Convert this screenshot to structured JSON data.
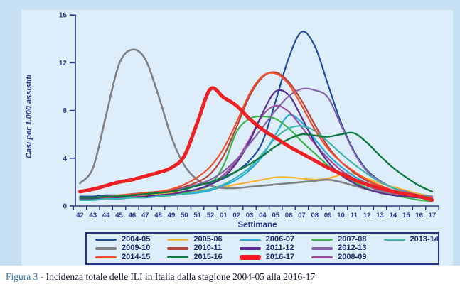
{
  "figure": {
    "caption_label": "Figura 3",
    "caption_text": " - Incidenza totale delle ILI in Italia dalla stagione 2004-05 alla 2016-17"
  },
  "colors": {
    "panel_outer": "#c7e0f3",
    "panel_inner": "#ddeefa",
    "axis": "#2b3990",
    "legend_border": "#2e3192",
    "caption_accent": "#2d74b5"
  },
  "chart_data": {
    "type": "line",
    "x_label": "Settimane",
    "y_label": "Casi per 1.000 assistiti",
    "x": [
      "42",
      "43",
      "44",
      "45",
      "46",
      "47",
      "48",
      "49",
      "50",
      "51",
      "52",
      "01",
      "02",
      "03",
      "04",
      "05",
      "06",
      "07",
      "08",
      "09",
      "10",
      "11",
      "12",
      "13",
      "14",
      "15",
      "16",
      "17"
    ],
    "y_ticks": [
      0,
      4,
      8,
      12,
      16
    ],
    "ylim": [
      0,
      16
    ],
    "grid": false,
    "legend_position": "bottom",
    "series": [
      {
        "name": "2004-05",
        "color": "#1f4e9e",
        "width": 2.2,
        "values": [
          0.8,
          0.8,
          0.9,
          0.9,
          1.0,
          1.1,
          1.2,
          1.3,
          1.5,
          1.7,
          1.9,
          2.3,
          2.9,
          3.8,
          5.4,
          8.8,
          12.4,
          14.6,
          13.4,
          10.2,
          7.0,
          4.6,
          3.0,
          2.1,
          1.5,
          1.2,
          1.0,
          0.8
        ]
      },
      {
        "name": "2009-10",
        "color": "#7f8184",
        "width": 2.6,
        "values": [
          1.9,
          3.2,
          7.6,
          11.9,
          13.1,
          12.3,
          9.3,
          5.8,
          3.4,
          2.2,
          1.7,
          1.5,
          1.5,
          1.6,
          1.7,
          1.8,
          1.9,
          2.0,
          2.1,
          2.2,
          2.0,
          1.7,
          1.4,
          1.2,
          1.0,
          0.8,
          0.7,
          0.6
        ]
      },
      {
        "name": "2014-15",
        "color": "#f04f2a",
        "width": 2.2,
        "values": [
          0.7,
          0.7,
          0.8,
          0.9,
          1.0,
          1.1,
          1.2,
          1.4,
          1.8,
          2.4,
          3.3,
          4.8,
          7.0,
          9.4,
          10.9,
          11.1,
          10.2,
          8.4,
          6.4,
          4.8,
          3.7,
          2.9,
          2.2,
          1.7,
          1.3,
          1.0,
          0.8,
          0.7
        ]
      },
      {
        "name": "2005-06",
        "color": "#f9b233",
        "width": 2.2,
        "values": [
          0.7,
          0.7,
          0.8,
          0.8,
          0.9,
          0.9,
          1.0,
          1.1,
          1.2,
          1.3,
          1.4,
          1.6,
          1.8,
          2.0,
          2.2,
          2.4,
          2.4,
          2.3,
          2.2,
          2.3,
          2.6,
          2.7,
          2.3,
          1.9,
          1.6,
          1.3,
          1.0,
          0.8
        ]
      },
      {
        "name": "2010-11",
        "color": "#b2453e",
        "width": 2.2,
        "values": [
          0.6,
          0.6,
          0.7,
          0.8,
          0.9,
          1.0,
          1.1,
          1.3,
          1.6,
          2.0,
          2.7,
          4.2,
          6.6,
          9.2,
          10.8,
          11.2,
          10.4,
          8.8,
          6.8,
          5.0,
          3.7,
          2.8,
          2.1,
          1.7,
          1.3,
          1.0,
          0.8,
          0.7
        ]
      },
      {
        "name": "2015-16",
        "color": "#0f7a40",
        "width": 2.4,
        "values": [
          0.7,
          0.7,
          0.8,
          0.8,
          0.9,
          1.0,
          1.1,
          1.2,
          1.4,
          1.7,
          2.0,
          2.4,
          2.9,
          3.5,
          4.2,
          5.0,
          5.6,
          6.0,
          5.9,
          5.8,
          6.0,
          6.1,
          5.3,
          4.2,
          3.2,
          2.4,
          1.7,
          1.2
        ]
      },
      {
        "name": "2006-07",
        "color": "#29abe2",
        "width": 2.2,
        "values": [
          0.5,
          0.5,
          0.6,
          0.6,
          0.7,
          0.7,
          0.8,
          0.9,
          1.0,
          1.1,
          1.3,
          1.7,
          2.2,
          3.0,
          4.2,
          6.0,
          7.6,
          7.0,
          5.6,
          4.3,
          3.3,
          2.5,
          1.9,
          1.5,
          1.2,
          0.9,
          0.7,
          0.6
        ]
      },
      {
        "name": "2011-12",
        "color": "#5c2d91",
        "width": 2.2,
        "values": [
          0.6,
          0.6,
          0.6,
          0.7,
          0.7,
          0.8,
          0.9,
          1.0,
          1.2,
          1.4,
          1.8,
          2.4,
          3.6,
          5.4,
          7.8,
          9.6,
          9.3,
          7.4,
          5.3,
          3.7,
          2.6,
          1.9,
          1.4,
          1.1,
          0.9,
          0.8,
          0.7,
          0.6
        ]
      },
      {
        "name": "2016-17",
        "color": "#ed2124",
        "width": 5,
        "values": [
          1.2,
          1.4,
          1.7,
          2.0,
          2.2,
          2.5,
          2.8,
          3.2,
          4.2,
          7.0,
          9.8,
          9.1,
          8.4,
          7.3,
          6.4,
          5.7,
          5.0,
          4.4,
          3.8,
          3.2,
          2.7,
          2.2,
          1.8,
          1.5,
          1.2,
          1.0,
          0.8,
          0.5
        ]
      },
      {
        "name": "2007-08",
        "color": "#3db54a",
        "width": 2.2,
        "values": [
          0.6,
          0.6,
          0.7,
          0.7,
          0.8,
          0.8,
          0.9,
          1.0,
          1.1,
          1.4,
          1.8,
          3.4,
          6.2,
          7.3,
          7.5,
          7.3,
          6.5,
          5.4,
          4.4,
          3.4,
          2.6,
          2.0,
          1.5,
          1.1,
          0.9,
          0.7,
          0.5,
          0.4
        ]
      },
      {
        "name": "2012-13",
        "color": "#8763a9",
        "width": 2.2,
        "values": [
          0.7,
          0.7,
          0.8,
          0.8,
          0.9,
          1.0,
          1.1,
          1.2,
          1.5,
          1.8,
          2.2,
          2.9,
          3.9,
          5.2,
          6.6,
          8.0,
          9.2,
          9.8,
          9.7,
          9.1,
          6.8,
          4.5,
          2.9,
          2.1,
          1.5,
          1.2,
          0.9,
          0.8
        ]
      },
      {
        "name": "2008-09",
        "color": "#9e4f9e",
        "width": 2.2,
        "values": [
          0.6,
          0.6,
          0.7,
          0.7,
          0.8,
          0.8,
          0.9,
          1.0,
          1.2,
          1.4,
          1.8,
          2.6,
          3.8,
          5.6,
          7.6,
          8.4,
          7.9,
          6.6,
          5.2,
          4.0,
          3.0,
          2.3,
          1.7,
          1.3,
          1.1,
          0.9,
          0.7,
          0.6
        ]
      },
      {
        "name": "2013-14",
        "color": "#42b5ae",
        "width": 2.2,
        "values": [
          0.5,
          0.5,
          0.6,
          0.6,
          0.7,
          0.7,
          0.8,
          0.9,
          1.0,
          1.2,
          1.4,
          1.8,
          2.4,
          3.2,
          4.4,
          5.7,
          6.5,
          6.7,
          6.3,
          5.4,
          4.4,
          3.5,
          2.7,
          2.0,
          1.5,
          1.1,
          0.9,
          0.7
        ]
      }
    ]
  }
}
